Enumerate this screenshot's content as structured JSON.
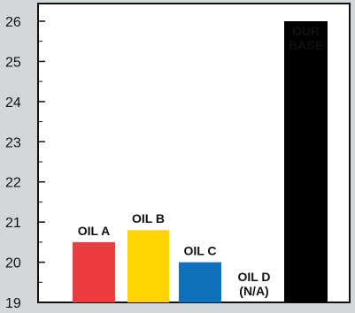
{
  "chart_data": {
    "type": "bar",
    "categories": [
      "OIL A",
      "OIL B",
      "OIL C",
      "OIL D",
      "OUR BASE"
    ],
    "values": [
      20.5,
      20.8,
      20.0,
      null,
      26.0
    ],
    "value_note_lines": [
      "",
      "",
      "",
      "(N/A)",
      ""
    ],
    "label_lines": [
      [
        "OIL A"
      ],
      [
        "OIL B"
      ],
      [
        "OIL C"
      ],
      [
        "OIL D",
        "(N/A)"
      ],
      [
        "OUR",
        "BASE"
      ]
    ],
    "label_placement": [
      "above",
      "above",
      "above",
      "above-axis",
      "inside-top"
    ],
    "colors": [
      "#ee3b3f",
      "#ffd400",
      "#0d71bc",
      "#000000",
      "#000000"
    ],
    "ylim": [
      19,
      26
    ],
    "yticks": [
      19,
      20,
      21,
      22,
      23,
      24,
      25,
      26
    ],
    "title": "",
    "xlabel": "",
    "ylabel": "",
    "grid": false,
    "legend": "none"
  }
}
